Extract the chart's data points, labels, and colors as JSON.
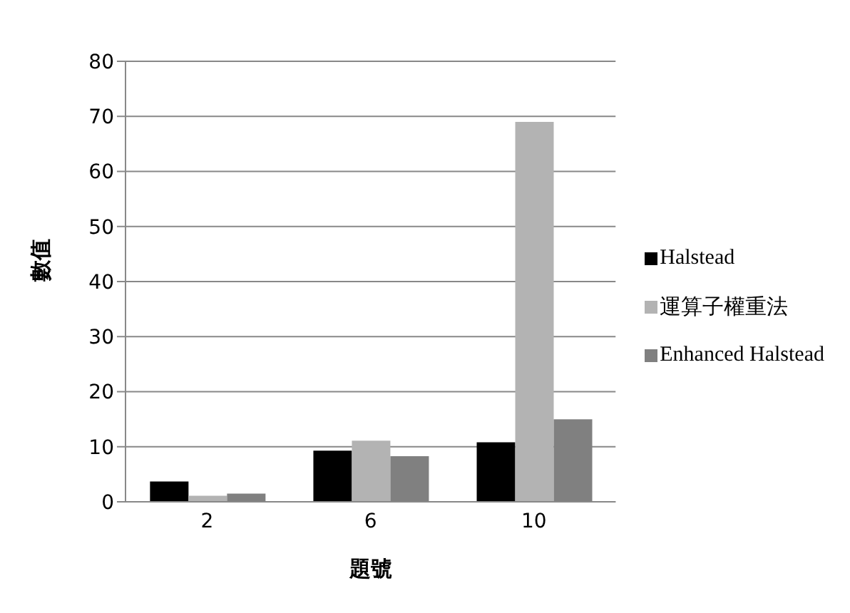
{
  "chart_data": {
    "type": "bar",
    "xlabel": "題號",
    "ylabel": "數值",
    "categories": [
      "2",
      "6",
      "10"
    ],
    "series": [
      {
        "name": "Halstead",
        "color": "#000000",
        "values": [
          3.7,
          9.3,
          10.8
        ]
      },
      {
        "name": "運算子權重法",
        "color": "#b3b3b3",
        "values": [
          1.1,
          11.1,
          69
        ]
      },
      {
        "name": "Enhanced Halstead",
        "color": "#808080",
        "values": [
          1.5,
          8.3,
          15
        ]
      }
    ],
    "ylim": [
      0,
      80
    ],
    "yticks": [
      0,
      10,
      20,
      30,
      40,
      50,
      60,
      70,
      80
    ],
    "grid": "y",
    "legend": "right"
  }
}
